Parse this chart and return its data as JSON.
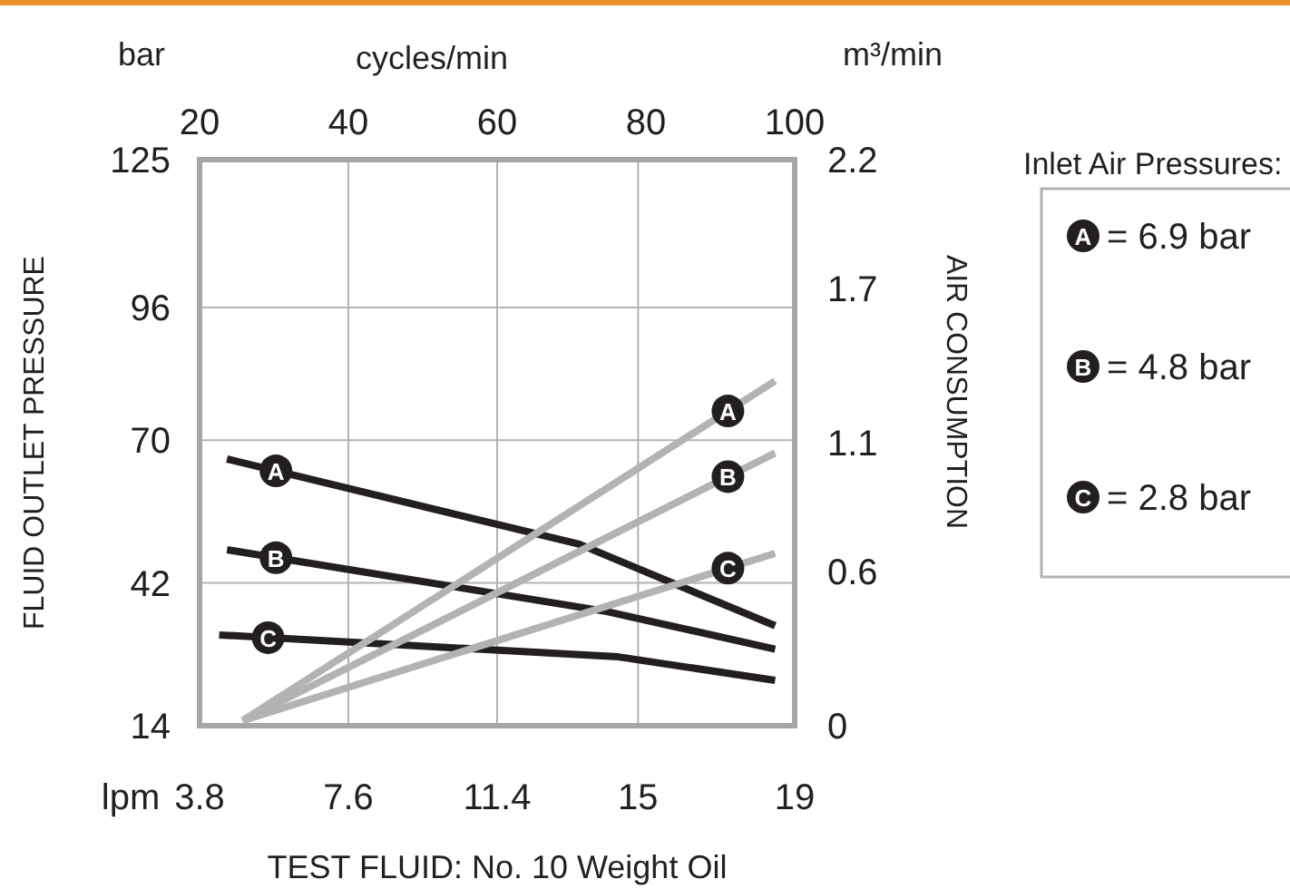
{
  "chart_data": {
    "type": "line",
    "xlabel": "TEST FLUID: No. 10 Weight Oil",
    "x2label": "cycles/min",
    "ylabel": "FLUID OUTLET PRESSURE",
    "y2label": "AIR CONSUMPTION",
    "legend_title": "Inlet Air Pressures:",
    "legend": "right",
    "grid": true,
    "marker": "none",
    "line_style": "solid",
    "xlim": [
      3.8,
      19
    ],
    "xticks": [
      3.8,
      7.6,
      11.4,
      15,
      19
    ],
    "x2lim": [
      20,
      100
    ],
    "x2ticks": [
      20,
      40,
      60,
      80,
      100
    ],
    "ylim": [
      14,
      125
    ],
    "yticks": [
      14,
      42,
      70,
      96,
      125
    ],
    "y2lim": [
      0,
      2.2
    ],
    "y2ticks": [
      0,
      0.6,
      1.1,
      1.7,
      2.2
    ],
    "annotations": [
      "bar",
      "m³/min",
      "lpm",
      "= 6.9 bar",
      "= 4.8 bar",
      "= 2.8 bar"
    ],
    "series": [
      {
        "name": "A",
        "color": "#231f20",
        "x": [
          4.5,
          13.5,
          18.5
        ],
        "values": [
          66.3,
          49.6,
          33.6
        ]
      },
      {
        "name": "B",
        "color": "#231f20",
        "x": [
          4.5,
          14.2,
          18.5
        ],
        "values": [
          48.5,
          36.4,
          29
        ]
      },
      {
        "name": "C",
        "color": "#231f20",
        "x": [
          4.3,
          14.5,
          18.5
        ],
        "values": [
          31.8,
          27.5,
          22.9
        ]
      },
      {
        "name": "A",
        "color": "#b3b3b3",
        "axis": "y2",
        "x": [
          4.9,
          18.5
        ],
        "values": [
          0.02,
          1.34
        ]
      },
      {
        "name": "B",
        "color": "#b3b3b3",
        "axis": "y2",
        "x": [
          4.9,
          18.5
        ],
        "values": [
          0.02,
          1.06
        ]
      },
      {
        "name": "C",
        "color": "#b3b3b3",
        "axis": "y2",
        "x": [
          4.9,
          18.5
        ],
        "values": [
          0.02,
          0.67
        ]
      }
    ]
  }
}
